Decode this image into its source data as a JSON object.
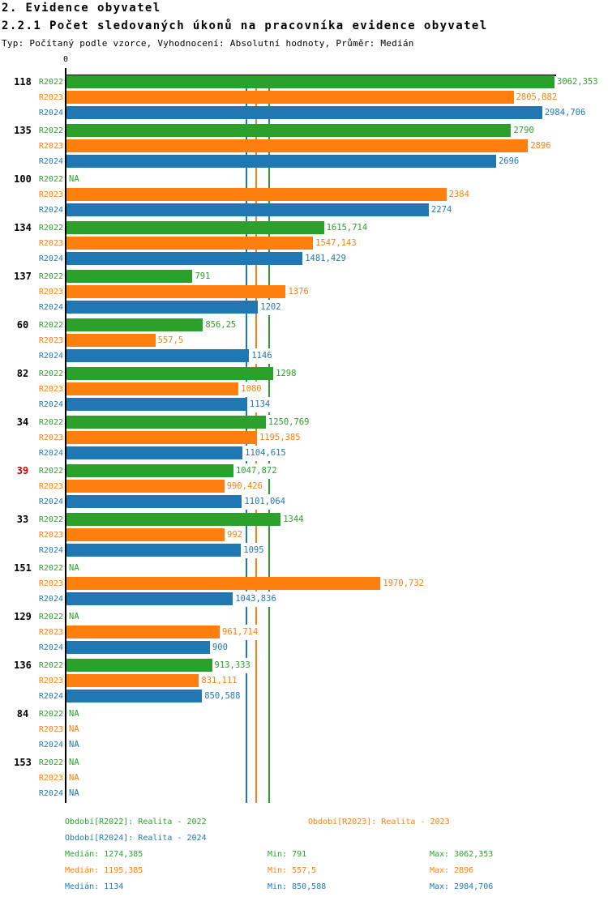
{
  "header": {
    "title": "2. Evidence obyvatel",
    "subtitle": "2.2.1 Počet sledovaných úkonů na pracovníka evidence obyvatel",
    "meta": "Typ: Počítaný podle vzorce, Vyhodnocení: Absolutní hodnoty, Průměr: Medián"
  },
  "chart_data": {
    "type": "bar",
    "orientation": "horizontal",
    "x_axis": {
      "zero_label": "0",
      "min": 0,
      "max": 3062.353
    },
    "na_text": "NA",
    "series": [
      {
        "label": "R2022",
        "name": "Realita - 2022",
        "color": "#2ca02c"
      },
      {
        "label": "R2023",
        "name": "Realita - 2023",
        "color": "#ff7f0e"
      },
      {
        "label": "R2024",
        "name": "Realita - 2024",
        "color": "#1f77b4"
      }
    ],
    "groups": [
      {
        "label": "118",
        "label_color": "#000000",
        "values": [
          3062.353,
          2805.882,
          2984.706
        ],
        "display": [
          "3062,353",
          "2805,882",
          "2984,706"
        ]
      },
      {
        "label": "135",
        "label_color": "#000000",
        "values": [
          2790,
          2896,
          2696
        ],
        "display": [
          "2790",
          "2896",
          "2696"
        ]
      },
      {
        "label": "100",
        "label_color": "#000000",
        "values": [
          null,
          2384,
          2274
        ],
        "display": [
          "NA",
          "2384",
          "2274"
        ]
      },
      {
        "label": "134",
        "label_color": "#000000",
        "values": [
          1615.714,
          1547.143,
          1481.429
        ],
        "display": [
          "1615,714",
          "1547,143",
          "1481,429"
        ]
      },
      {
        "label": "137",
        "label_color": "#000000",
        "values": [
          791,
          1376,
          1202
        ],
        "display": [
          "791",
          "1376",
          "1202"
        ]
      },
      {
        "label": "60",
        "label_color": "#000000",
        "values": [
          856.25,
          557.5,
          1146
        ],
        "display": [
          "856,25",
          "557,5",
          "1146"
        ]
      },
      {
        "label": "82",
        "label_color": "#000000",
        "values": [
          1298,
          1080,
          1134
        ],
        "display": [
          "1298",
          "1080",
          "1134"
        ]
      },
      {
        "label": "34",
        "label_color": "#000000",
        "values": [
          1250.769,
          1195.385,
          1104.615
        ],
        "display": [
          "1250,769",
          "1195,385",
          "1104,615"
        ]
      },
      {
        "label": "39",
        "label_color": "#cc0000",
        "values": [
          1047.872,
          990.426,
          1101.064
        ],
        "display": [
          "1047,872",
          "990,426",
          "1101,064"
        ]
      },
      {
        "label": "33",
        "label_color": "#000000",
        "values": [
          1344,
          992,
          1095
        ],
        "display": [
          "1344",
          "992",
          "1095"
        ]
      },
      {
        "label": "151",
        "label_color": "#000000",
        "values": [
          null,
          1970.732,
          1043.836
        ],
        "display": [
          "NA",
          "1970,732",
          "1043,836"
        ]
      },
      {
        "label": "129",
        "label_color": "#000000",
        "values": [
          null,
          961.714,
          900
        ],
        "display": [
          "NA",
          "961,714",
          "900"
        ]
      },
      {
        "label": "136",
        "label_color": "#000000",
        "values": [
          913.333,
          831.111,
          850.588
        ],
        "display": [
          "913,333",
          "831,111",
          "850,588"
        ]
      },
      {
        "label": "84",
        "label_color": "#000000",
        "values": [
          null,
          null,
          null
        ],
        "display": [
          "NA",
          "NA",
          "NA"
        ]
      },
      {
        "label": "153",
        "label_color": "#000000",
        "values": [
          null,
          null,
          null
        ],
        "display": [
          "NA",
          "NA",
          "NA"
        ]
      }
    ],
    "median_lines": [
      {
        "series": "R2024",
        "value": 1134,
        "color": "#1f77b4"
      },
      {
        "series": "R2023",
        "value": 1195.385,
        "color": "#ff7f0e"
      },
      {
        "series": "R2022",
        "value": 1274.385,
        "color": "#2ca02c"
      }
    ],
    "series_stats": [
      {
        "series": "R2022",
        "median": 1274.385,
        "min": 791,
        "max": 3062.353
      },
      {
        "series": "R2023",
        "median": 1195.385,
        "min": 557.5,
        "max": 2896
      },
      {
        "series": "R2024",
        "median": 1134,
        "min": 850.588,
        "max": 2984.706
      }
    ]
  },
  "legend": {
    "items": [
      {
        "text": "Období[R2022]: Realita - 2022",
        "color": "#2ca02c",
        "row": 0,
        "col": 0
      },
      {
        "text": "Období[R2023]: Realita - 2023",
        "color": "#ff7f0e",
        "row": 0,
        "col": 1
      },
      {
        "text": "Období[R2024]: Realita - 2024",
        "color": "#1f77b4",
        "row": 1,
        "col": 0
      }
    ]
  },
  "footer_stats": {
    "rows": [
      {
        "color": "#2ca02c",
        "median": "Medián: 1274,385",
        "min": "Min: 791",
        "max": "Max: 3062,353"
      },
      {
        "color": "#ff7f0e",
        "median": "Medián: 1195,385",
        "min": "Min: 557,5",
        "max": "Max: 2896"
      },
      {
        "color": "#1f77b4",
        "median": "Medián: 1134",
        "min": "Min: 850,588",
        "max": "Max: 2984,706"
      }
    ]
  }
}
